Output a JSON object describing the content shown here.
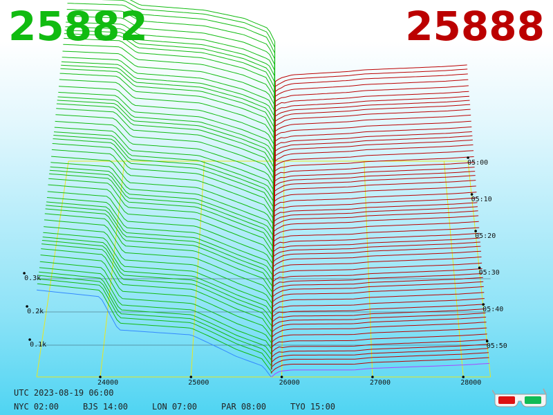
{
  "header": {
    "bid_price": "25882",
    "ask_price": "25888"
  },
  "footer": {
    "utc": "UTC 2023-08-19 06:00",
    "cities": [
      {
        "text": "NYC 02:00"
      },
      {
        "text": "BJS 14:00"
      },
      {
        "text": "LON 07:00"
      },
      {
        "text": "PAR 08:00"
      },
      {
        "text": "TYO 15:00"
      }
    ]
  },
  "colors": {
    "bid": "#11bb11",
    "ask": "#bb0000",
    "grid": "#e8e820",
    "latest_bid": "#3388ff",
    "latest_ask": "#aa44ff"
  },
  "icons": {
    "glasses": "3d-glasses-icon"
  },
  "chart_data": {
    "type": "area",
    "description_type": "3d order book depth waterfall",
    "x_axis": {
      "ticks": [
        24000,
        25000,
        26000,
        27000,
        28000
      ],
      "labels": [
        "24000",
        "25000",
        "26000",
        "27000",
        "28000"
      ]
    },
    "y_axis": {
      "ticks": [
        100,
        200,
        300
      ],
      "labels": [
        "0.1k",
        "0.2k",
        "0.3k"
      ]
    },
    "z_axis": {
      "ticks": [
        "05:00",
        "05:10",
        "05:20",
        "05:30",
        "05:40",
        "05:50"
      ]
    },
    "time_range": [
      "05:00",
      "05:50"
    ],
    "slices": 60,
    "bid_series": {
      "name": "bid",
      "price_points": [
        23300,
        24000,
        24200,
        25000,
        25200,
        25500,
        25800,
        25882
      ],
      "cumulative_depth_latest": [
        260,
        240,
        140,
        125,
        100,
        60,
        30,
        0
      ],
      "cumulative_depth_oldest": [
        500,
        495,
        470,
        455,
        445,
        430,
        400,
        360
      ]
    },
    "ask_series": {
      "name": "ask",
      "price_points": [
        25888,
        25950,
        26100,
        26800,
        27000,
        28000,
        28300
      ],
      "cumulative_depth_latest": [
        0,
        15,
        20,
        20,
        25,
        35,
        40
      ],
      "cumulative_depth_oldest": [
        240,
        250,
        260,
        270,
        275,
        285,
        290
      ]
    }
  }
}
